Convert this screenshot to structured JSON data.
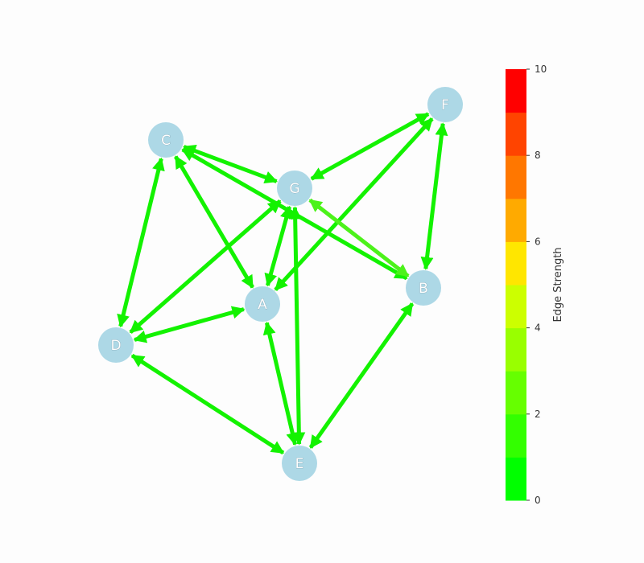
{
  "graph": {
    "node_color": "#add8e6",
    "edge_color": "#13f200",
    "nodes": [
      {
        "id": "A",
        "label": "A"
      },
      {
        "id": "B",
        "label": "B"
      },
      {
        "id": "C",
        "label": "C"
      },
      {
        "id": "D",
        "label": "D"
      },
      {
        "id": "E",
        "label": "E"
      },
      {
        "id": "F",
        "label": "F"
      },
      {
        "id": "G",
        "label": "G"
      }
    ],
    "edges": [
      {
        "from": "C",
        "to": "G",
        "weight": 0.3
      },
      {
        "from": "C",
        "to": "A",
        "weight": 0.3
      },
      {
        "from": "C",
        "to": "D",
        "weight": 0.3
      },
      {
        "from": "C",
        "to": "B",
        "weight": 0.3
      },
      {
        "from": "F",
        "to": "G",
        "weight": 0.3
      },
      {
        "from": "F",
        "to": "A",
        "weight": 0.3
      },
      {
        "from": "F",
        "to": "B",
        "weight": 0.3
      },
      {
        "from": "G",
        "to": "B",
        "weight": 1.8
      },
      {
        "from": "G",
        "to": "A",
        "weight": 0.3
      },
      {
        "from": "G",
        "to": "D",
        "weight": 0.3
      },
      {
        "from": "G",
        "to": "E",
        "weight": 0.3
      },
      {
        "from": "A",
        "to": "D",
        "weight": 0.3
      },
      {
        "from": "A",
        "to": "E",
        "weight": 0.3
      },
      {
        "from": "D",
        "to": "E",
        "weight": 0.3
      },
      {
        "from": "B",
        "to": "E",
        "weight": 0.3
      }
    ]
  },
  "colorbar": {
    "title": "Edge Strength",
    "min": 0,
    "max": 10,
    "ticks": [
      "0",
      "2",
      "4",
      "6",
      "8",
      "10"
    ],
    "colors": [
      "#00ff00",
      "#33ff00",
      "#66ff00",
      "#99ff00",
      "#ccff00",
      "#ffe600",
      "#ffaa00",
      "#ff7700",
      "#ff4400",
      "#ff0000"
    ]
  }
}
